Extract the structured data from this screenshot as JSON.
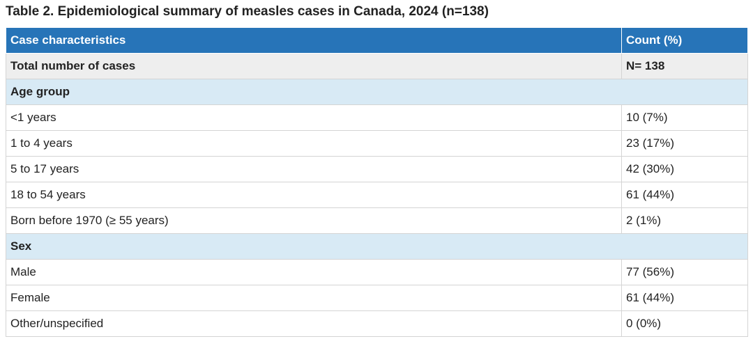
{
  "caption": "Table 2. Epidemiological summary of measles cases in Canada, 2024 (n=138)",
  "table": {
    "headers": [
      "Case characteristics",
      "Count (%)"
    ],
    "total": {
      "label": "Total number of cases",
      "value": "N= 138"
    },
    "groups": [
      {
        "label": "Age group",
        "rows": [
          {
            "label": "<1 years",
            "value": "10 (7%)"
          },
          {
            "label": "1 to 4 years",
            "value": "23 (17%)"
          },
          {
            "label": "5 to 17 years",
            "value": "42 (30%)"
          },
          {
            "label": "18 to 54 years",
            "value": "61 (44%)"
          },
          {
            "label": "Born before 1970 (≥ 55 years)",
            "value": "2 (1%)"
          }
        ]
      },
      {
        "label": "Sex",
        "rows": [
          {
            "label": "Male",
            "value": "77 (56%)"
          },
          {
            "label": "Female",
            "value": "61 (44%)"
          },
          {
            "label": "Other/unspecified",
            "value": "0 (0%)"
          }
        ]
      }
    ]
  }
}
